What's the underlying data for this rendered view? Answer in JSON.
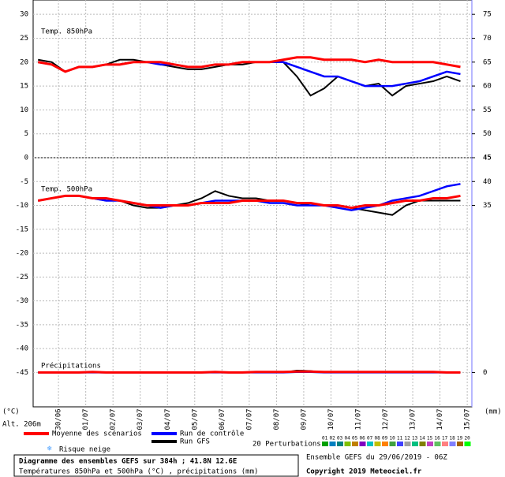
{
  "chart_data": [
    {
      "type": "line",
      "title": "Temp. 850hPa",
      "x": [
        0.25,
        0.75,
        1.25,
        1.75,
        2.25,
        2.75,
        3.25,
        3.75,
        4.25,
        4.75,
        5.25,
        5.75,
        6.25,
        6.75,
        7.25,
        7.75,
        8.25,
        8.75,
        9.25,
        9.75,
        10.25,
        10.75,
        11.25,
        11.75,
        12.25,
        12.75,
        13.25,
        13.75,
        14.25,
        14.75,
        15.25,
        15.75
      ],
      "xlim": [
        0.07,
        16.17
      ],
      "xticks": [
        {
          "value": 1,
          "label": "30/06"
        },
        {
          "value": 2,
          "label": "01/07"
        },
        {
          "value": 3,
          "label": "02/07"
        },
        {
          "value": 4,
          "label": "03/07"
        },
        {
          "value": 5,
          "label": "04/07"
        },
        {
          "value": 6,
          "label": "05/07"
        },
        {
          "value": 7,
          "label": "06/07"
        },
        {
          "value": 8,
          "label": "07/07"
        },
        {
          "value": 9,
          "label": "08/07"
        },
        {
          "value": 10,
          "label": "09/07"
        },
        {
          "value": 11,
          "label": "10/07"
        },
        {
          "value": 12,
          "label": "11/07"
        },
        {
          "value": 13,
          "label": "12/07"
        },
        {
          "value": 14,
          "label": "13/07"
        },
        {
          "value": 15,
          "label": "14/07"
        },
        {
          "value": 16,
          "label": "15/07"
        }
      ],
      "ylim": [
        0,
        33
      ],
      "yticks": [
        0,
        5,
        10,
        15,
        20,
        25,
        30
      ],
      "y2lim": [
        45,
        78
      ],
      "y2ticks": [
        45,
        50,
        55,
        60,
        65,
        70,
        75
      ],
      "grid": true,
      "series": [
        {
          "name": "Moyenne des scénarios",
          "color": "#ff0000",
          "values": [
            20,
            19.5,
            18,
            19,
            19,
            19.5,
            19.5,
            20,
            20,
            20,
            19.5,
            19,
            19,
            19.5,
            19.5,
            20,
            20,
            20,
            20.5,
            21,
            21,
            20.5,
            20.5,
            20.5,
            20,
            20.5,
            20,
            20,
            20,
            20,
            19.5,
            19
          ]
        },
        {
          "name": "Run de contrôle",
          "color": "#0000ff",
          "values": [
            20,
            19.5,
            18,
            19,
            19,
            19.5,
            19.5,
            20,
            20,
            19.5,
            19.5,
            19,
            19,
            19.5,
            19.5,
            20,
            20,
            20,
            20,
            19,
            18,
            17,
            17,
            16,
            15,
            15,
            15,
            15.5,
            16,
            17,
            18,
            17.5
          ]
        },
        {
          "name": "Run GFS",
          "color": "#000000",
          "values": [
            20.5,
            20,
            18,
            19,
            19,
            19.5,
            20.5,
            20.5,
            20,
            19.5,
            19,
            18.5,
            18.5,
            19,
            19.5,
            19.5,
            20,
            20,
            20,
            17,
            13,
            14.5,
            17,
            16,
            15,
            15.5,
            13,
            15,
            15.5,
            16,
            17,
            16
          ]
        }
      ]
    },
    {
      "type": "line",
      "title": "Temp. 500hPa",
      "ylim": [
        -52.2,
        0
      ],
      "yticks": [
        -5,
        -10,
        -15,
        -20,
        -25,
        -30,
        -35,
        -40,
        -45
      ],
      "series": [
        {
          "color": "#ff0000",
          "values": [
            -9,
            -8.5,
            -8,
            -8,
            -8.5,
            -8.5,
            -9,
            -9.5,
            -10,
            -10,
            -10,
            -10,
            -9.5,
            -9.5,
            -9.5,
            -9,
            -9,
            -9,
            -9,
            -9.5,
            -9.5,
            -10,
            -10,
            -10.5,
            -10,
            -10,
            -9.5,
            -9,
            -9,
            -8.5,
            -8.5,
            -8
          ]
        },
        {
          "color": "#0000ff",
          "values": [
            -9,
            -8.5,
            -8,
            -8,
            -8.5,
            -9,
            -9,
            -9.5,
            -10,
            -10.5,
            -10,
            -10,
            -9.5,
            -9,
            -9,
            -9,
            -9,
            -9.5,
            -9.5,
            -10,
            -10,
            -10,
            -10.5,
            -11,
            -10.5,
            -10,
            -9,
            -8.5,
            -8,
            -7,
            -6,
            -5.5
          ]
        },
        {
          "color": "#000000",
          "values": [
            -9,
            -8.5,
            -8,
            -8,
            -8.5,
            -9,
            -9,
            -10,
            -10.5,
            -10.5,
            -10,
            -9.5,
            -8.5,
            -7,
            -8,
            -8.5,
            -8.5,
            -9,
            -9,
            -9.5,
            -10,
            -10,
            -10,
            -10.5,
            -11,
            -11.5,
            -12,
            -10,
            -9,
            -9,
            -9,
            -9
          ]
        }
      ]
    },
    {
      "type": "line",
      "title": "Précipitations",
      "y2lim": [
        -7.2,
        45
      ],
      "y2ticks": [
        0,
        35,
        40,
        45
      ],
      "series": [
        {
          "color": "#ff0000",
          "values": [
            0,
            0,
            0,
            0,
            0.1,
            0,
            0,
            0,
            0,
            0,
            0,
            0,
            0,
            0.1,
            0,
            0,
            0.1,
            0.1,
            0.1,
            0.2,
            0.2,
            0.1,
            0.1,
            0.1,
            0.1,
            0.1,
            0.1,
            0.1,
            0.1,
            0.1,
            0,
            0
          ]
        },
        {
          "color": "#0000ff",
          "values": [
            0,
            0,
            0,
            0,
            0,
            0,
            0,
            0,
            0,
            0,
            0,
            0,
            0,
            0,
            0,
            0,
            0,
            0,
            0,
            0.1,
            0.1,
            0,
            0,
            0,
            0,
            0,
            0,
            0,
            0,
            0,
            0,
            0
          ]
        },
        {
          "color": "#000000",
          "values": [
            0,
            0,
            0,
            0,
            0,
            0,
            0,
            0,
            0,
            0,
            0,
            0,
            0,
            0,
            0,
            0,
            0,
            0,
            0,
            0.4,
            0.3,
            0,
            0,
            0,
            0,
            0,
            0,
            0,
            0,
            0,
            0,
            0
          ]
        }
      ]
    }
  ],
  "labels": {
    "y_unit": "(°C)",
    "altitude": "Alt. 206m",
    "y2_unit": "(mm)",
    "snow": "Risque neige",
    "perturbations": "20 Perturbations"
  },
  "perturbation_legend": {
    "labels": [
      "01",
      "02",
      "03",
      "04",
      "05",
      "06",
      "07",
      "08",
      "09",
      "10",
      "11",
      "12",
      "13",
      "14",
      "15",
      "16",
      "17",
      "18",
      "19",
      "20"
    ],
    "colors": [
      "#00a000",
      "#0080c0",
      "#008080",
      "#80c000",
      "#c08000",
      "#8000c0",
      "#00c0c0",
      "#c0c000",
      "#ff8000",
      "#40a040",
      "#4040ff",
      "#a0a0a0",
      "#00c080",
      "#808000",
      "#c040c0",
      "#60c060",
      "#ff8080",
      "#8080ff",
      "#a06000",
      "#00ff00"
    ]
  },
  "footer": {
    "title": "Diagramme des ensembles GEFS sur 384h ; 41.8N 12.6E",
    "subtitle": "Températures 850hPa et 500hPa (°C) , précipitations (mm)",
    "run": "Ensemble GEFS du 29/06/2019 - 06Z",
    "copyright": "Copyright 2019 Meteociel.fr"
  }
}
